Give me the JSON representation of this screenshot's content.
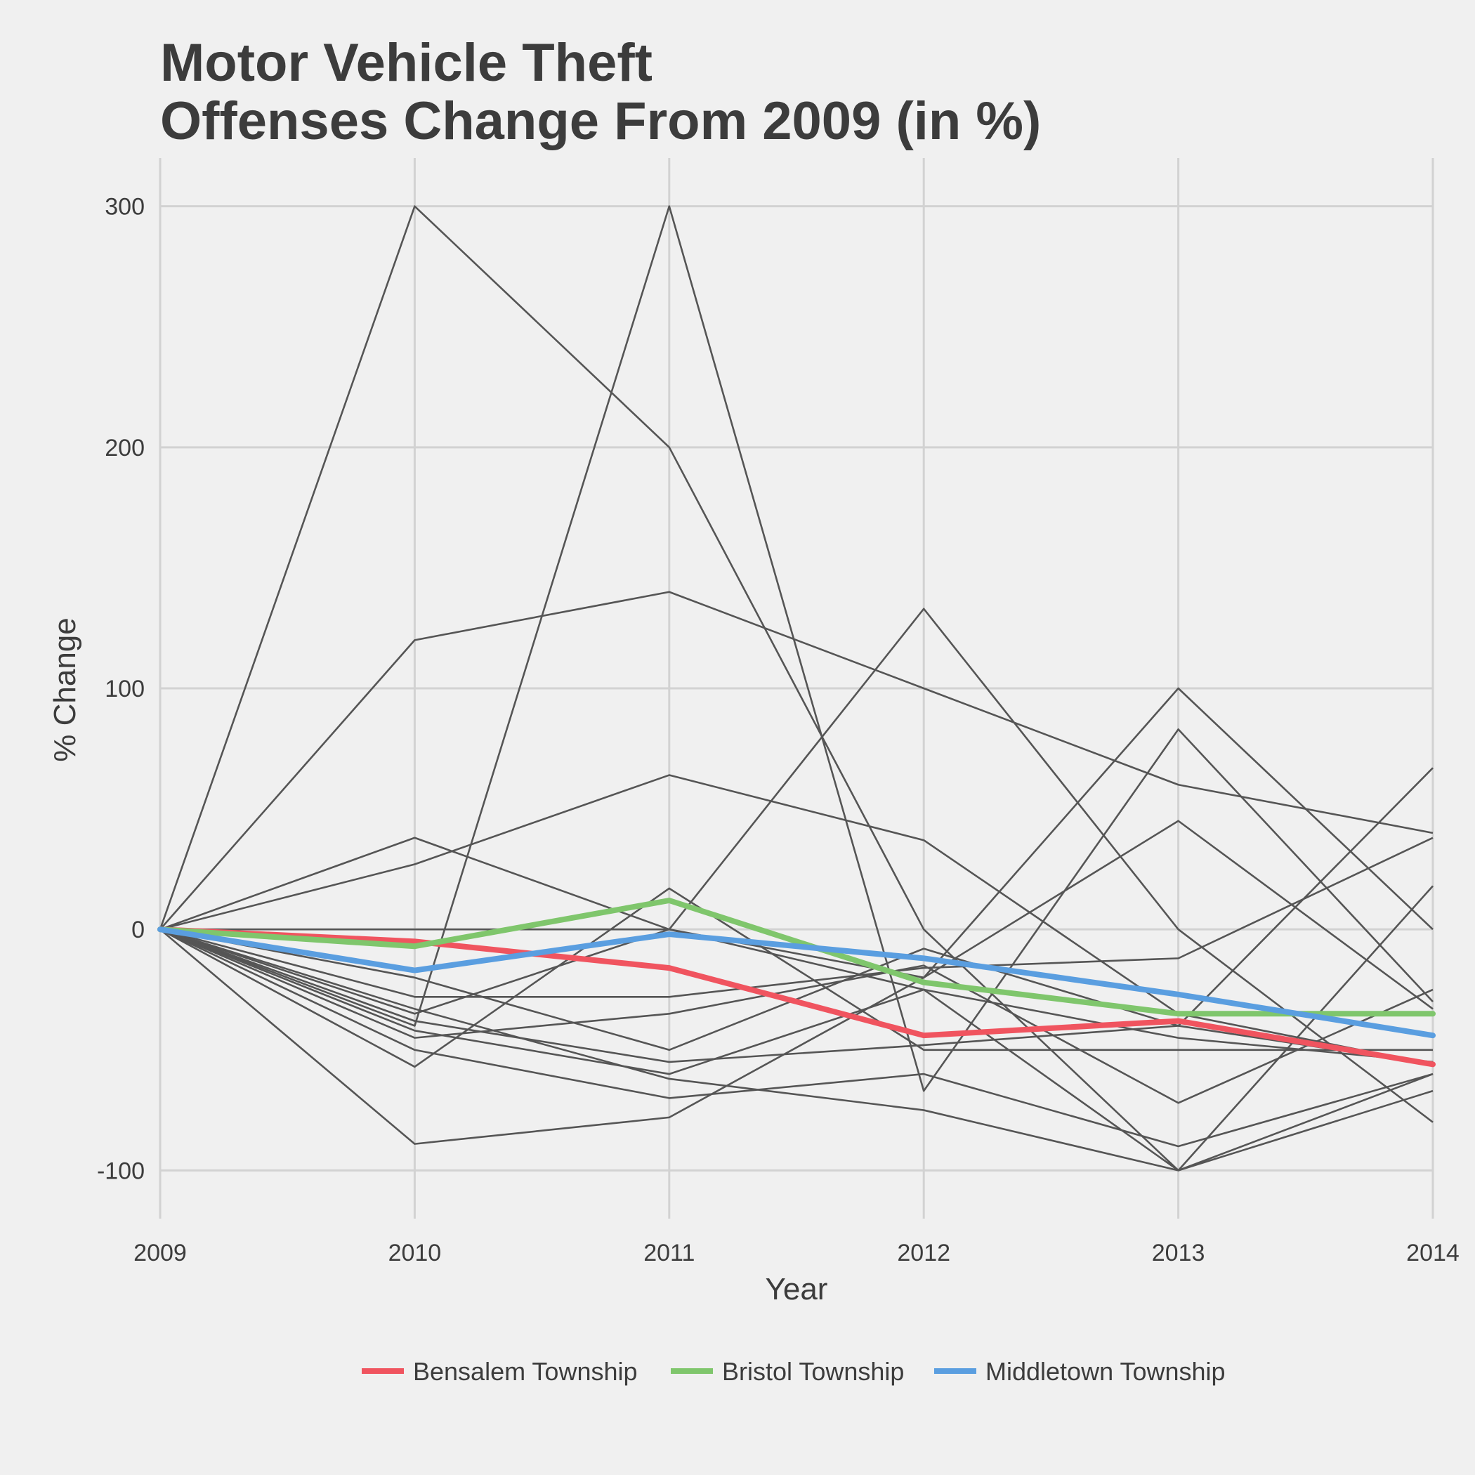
{
  "chart_data": {
    "type": "line",
    "title_lines": [
      "Motor Vehicle Theft",
      "Offenses Change From 2009 (in %)"
    ],
    "xlabel": "Year",
    "ylabel": "% Change",
    "x": [
      2009,
      2010,
      2011,
      2012,
      2013,
      2014
    ],
    "x_tick_labels": [
      "2009",
      "2010",
      "2011",
      "2012",
      "2013",
      "2014"
    ],
    "y_ticks": [
      -100,
      0,
      100,
      200,
      300
    ],
    "y_tick_labels": [
      "-100",
      "0",
      "100",
      "200",
      "300"
    ],
    "ylim": [
      -120,
      320
    ],
    "xlim": [
      2009,
      2014
    ],
    "grid": true,
    "legend_position": "bottom",
    "colors": {
      "background": "#f0f0f0",
      "grid": "#d2d2d2",
      "other_lines": "#555555",
      "text": "#3c3c3c"
    },
    "highlighted_series": [
      {
        "name": "Bensalem Township",
        "color": "#f0545f",
        "values": [
          0,
          -5,
          -16,
          -44,
          -38,
          -56
        ]
      },
      {
        "name": "Bristol Township",
        "color": "#7fc66c",
        "values": [
          0,
          -7,
          12,
          -22,
          -35,
          -35
        ]
      },
      {
        "name": "Middletown Township",
        "color": "#5a9ee0",
        "values": [
          0,
          -17,
          -2,
          -12,
          -27,
          -44
        ]
      }
    ],
    "other_series": [
      [
        0,
        300,
        200,
        0,
        -100,
        -60
      ],
      [
        0,
        -40,
        300,
        -67,
        83,
        -30
      ],
      [
        0,
        120,
        140,
        100,
        60,
        40
      ],
      [
        0,
        27,
        64,
        37,
        -35,
        -56
      ],
      [
        0,
        38,
        0,
        -20,
        100,
        0
      ],
      [
        0,
        -57,
        17,
        -50,
        -50,
        -50
      ],
      [
        0,
        -35,
        0,
        133,
        0,
        -80
      ],
      [
        0,
        -89,
        -78,
        -20,
        45,
        -33
      ],
      [
        0,
        0,
        0,
        -25,
        -100,
        -67
      ],
      [
        0,
        -28,
        -28,
        -16,
        -12,
        38
      ],
      [
        0,
        -20,
        -50,
        -8,
        -40,
        -56
      ],
      [
        0,
        -33,
        -62,
        -75,
        -100,
        18
      ],
      [
        0,
        -45,
        -35,
        -15,
        -72,
        -25
      ],
      [
        0,
        -50,
        -70,
        -60,
        -90,
        -60
      ],
      [
        0,
        -38,
        -55,
        -48,
        -40,
        67
      ],
      [
        0,
        -42,
        -60,
        -25,
        -45,
        -55
      ]
    ]
  }
}
